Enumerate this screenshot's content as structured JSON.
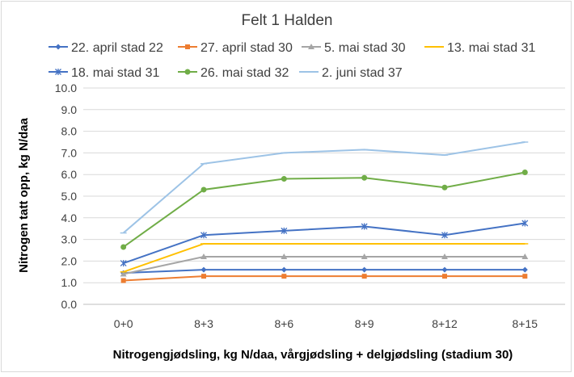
{
  "chart_data": {
    "type": "line",
    "title": "Felt 1 Halden",
    "xlabel": "Nitrogengjødsling, kg N/daa, vårgjødsling + delgjødsling (stadium 30)",
    "ylabel": "Nitrogen tatt opp, kg N/daa",
    "categories": [
      "0+0",
      "8+3",
      "8+6",
      "8+9",
      "8+12",
      "8+15"
    ],
    "ylim": [
      0,
      10
    ],
    "yticks": [
      "0.0",
      "1.0",
      "2.0",
      "3.0",
      "4.0",
      "5.0",
      "6.0",
      "7.0",
      "8.0",
      "9.0",
      "10.0"
    ],
    "grid": true,
    "legend_position": "top",
    "series": [
      {
        "name": "22. april stad 22",
        "color": "#4472c4",
        "marker": "diamond",
        "values": [
          1.45,
          1.6,
          1.6,
          1.6,
          1.6,
          1.6
        ]
      },
      {
        "name": "27. april stad 30",
        "color": "#ed7d31",
        "marker": "square",
        "values": [
          1.1,
          1.3,
          1.3,
          1.3,
          1.3,
          1.3
        ]
      },
      {
        "name": "5. mai stad 30",
        "color": "#a5a5a5",
        "marker": "triangle",
        "values": [
          1.4,
          2.2,
          2.2,
          2.2,
          2.2,
          2.2
        ]
      },
      {
        "name": "13. mai stad 31",
        "color": "#ffc000",
        "marker": "dash",
        "values": [
          1.5,
          2.8,
          2.8,
          2.8,
          2.8,
          2.8
        ]
      },
      {
        "name": "18. mai stad 31",
        "color": "#4472c4",
        "marker": "star",
        "values": [
          1.9,
          3.2,
          3.4,
          3.6,
          3.2,
          3.75
        ]
      },
      {
        "name": "26. mai stad 32",
        "color": "#70ad47",
        "marker": "circle",
        "values": [
          2.65,
          5.3,
          5.8,
          5.85,
          5.4,
          6.1
        ]
      },
      {
        "name": "2. juni stad 37",
        "color": "#9dc3e6",
        "marker": "dash",
        "values": [
          3.3,
          6.5,
          7.0,
          7.15,
          6.9,
          7.5
        ]
      }
    ]
  }
}
